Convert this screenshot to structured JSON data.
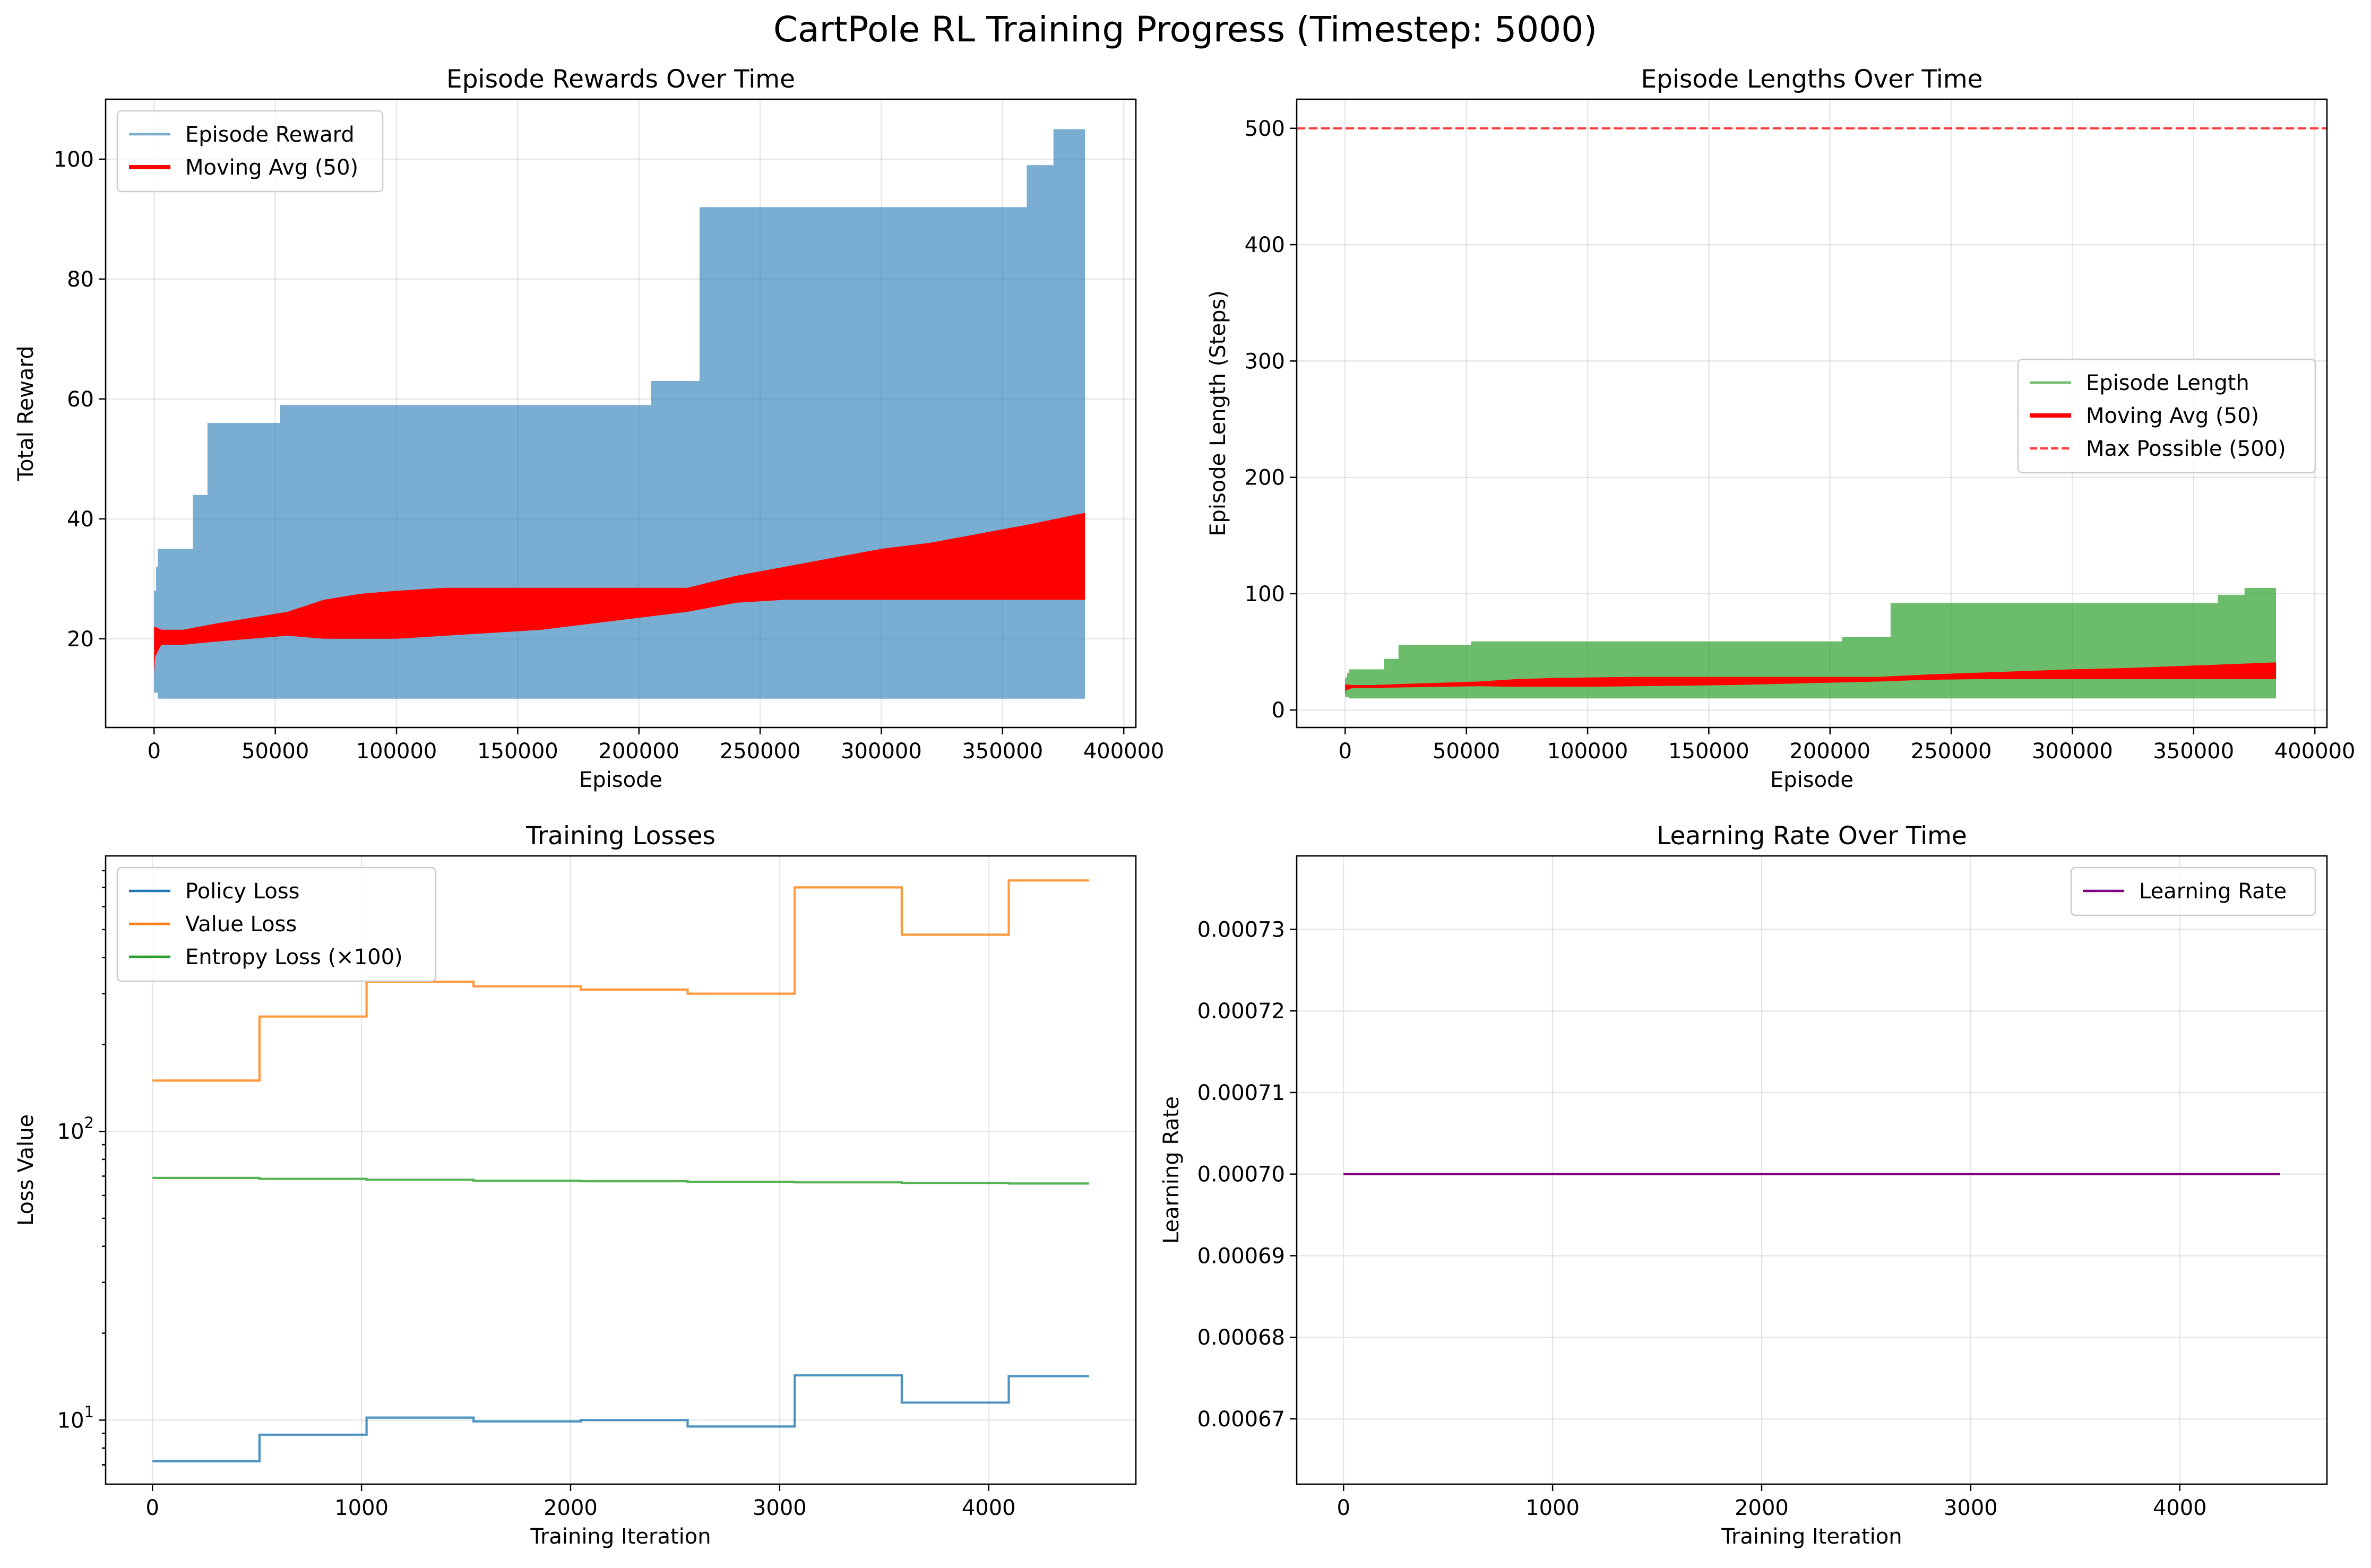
{
  "title": "CartPole RL Training Progress (Timestep: 5000)",
  "chart_data": [
    {
      "type": "area",
      "title": "Episode Rewards Over Time",
      "xlabel": "Episode",
      "ylabel": "Total Reward",
      "xlim": [
        -20000,
        405000
      ],
      "ylim": [
        5.2,
        110
      ],
      "xticks": [
        0,
        50000,
        100000,
        150000,
        200000,
        250000,
        300000,
        350000,
        400000
      ],
      "yticks": [
        20,
        40,
        60,
        80,
        100
      ],
      "grid": true,
      "legend_position": "upper left",
      "series": [
        {
          "name": "Episode Reward",
          "kind": "band",
          "color": "#1f77b4",
          "opacity": 0.6,
          "x": [
            0,
            800,
            800,
            1500,
            1500,
            4000,
            4000,
            16000,
            16000,
            22000,
            22000,
            52000,
            52000,
            205000,
            205000,
            225000,
            225000,
            360000,
            360000,
            371000,
            371000,
            384000
          ],
          "upper": [
            28,
            28,
            32,
            32,
            35,
            35,
            35,
            35,
            44,
            44,
            56,
            56,
            59,
            59,
            63,
            63,
            92,
            92,
            99,
            99,
            105,
            105
          ],
          "lower": [
            11,
            11,
            11,
            11,
            10,
            10,
            10,
            10,
            10,
            10,
            10,
            10,
            10,
            10,
            10,
            10,
            10,
            10,
            10,
            10,
            10,
            10
          ]
        },
        {
          "name": "Moving Avg (50)",
          "kind": "band",
          "color": "#ff0000",
          "x": [
            0,
            400,
            3000,
            12000,
            25000,
            40000,
            55000,
            70000,
            85000,
            100000,
            120000,
            140000,
            160000,
            180000,
            200000,
            220000,
            240000,
            260000,
            280000,
            300000,
            320000,
            340000,
            360000,
            384000
          ],
          "upper": [
            22,
            22,
            21.5,
            21.5,
            22.5,
            23.5,
            24.5,
            26.5,
            27.5,
            28,
            28.5,
            28.5,
            28.5,
            28.5,
            28.5,
            28.5,
            30.5,
            32,
            33.5,
            35,
            36,
            37.5,
            39,
            41
          ],
          "lower": [
            14,
            17,
            19,
            19,
            19.5,
            20,
            20.5,
            20,
            20,
            20,
            20.5,
            21,
            21.5,
            22.5,
            23.5,
            24.5,
            26,
            26.5,
            26.5,
            26.5,
            26.5,
            26.5,
            26.5,
            26.5
          ]
        }
      ]
    },
    {
      "type": "area",
      "title": "Episode Lengths Over Time",
      "xlabel": "Episode",
      "ylabel": "Episode Length (Steps)",
      "xlim": [
        -20000,
        405000
      ],
      "ylim": [
        -15,
        525
      ],
      "xticks": [
        0,
        50000,
        100000,
        150000,
        200000,
        250000,
        300000,
        350000,
        400000
      ],
      "yticks": [
        0,
        100,
        200,
        300,
        400,
        500
      ],
      "grid": true,
      "legend_position": "center right",
      "series": [
        {
          "name": "Episode Length",
          "kind": "band",
          "color": "#2ca02c",
          "opacity": 0.7,
          "x": [
            0,
            800,
            800,
            1500,
            1500,
            4000,
            4000,
            16000,
            16000,
            22000,
            22000,
            52000,
            52000,
            205000,
            205000,
            225000,
            225000,
            360000,
            360000,
            371000,
            371000,
            384000
          ],
          "upper": [
            28,
            28,
            32,
            32,
            35,
            35,
            35,
            35,
            44,
            44,
            56,
            56,
            59,
            59,
            63,
            63,
            92,
            92,
            99,
            99,
            105,
            105
          ],
          "lower": [
            11,
            11,
            11,
            11,
            10,
            10,
            10,
            10,
            10,
            10,
            10,
            10,
            10,
            10,
            10,
            10,
            10,
            10,
            10,
            10,
            10,
            10
          ]
        },
        {
          "name": "Moving Avg (50)",
          "kind": "band",
          "color": "#ff0000",
          "x": [
            0,
            400,
            3000,
            12000,
            25000,
            40000,
            55000,
            70000,
            85000,
            100000,
            120000,
            140000,
            160000,
            180000,
            200000,
            220000,
            240000,
            260000,
            280000,
            300000,
            320000,
            340000,
            360000,
            384000
          ],
          "upper": [
            22,
            22,
            21.5,
            21.5,
            22.5,
            23.5,
            24.5,
            26.5,
            27.5,
            28,
            28.5,
            28.5,
            28.5,
            28.5,
            28.5,
            28.5,
            30.5,
            32,
            33.5,
            35,
            36,
            37.5,
            39,
            41
          ],
          "lower": [
            14,
            17,
            19,
            19,
            19.5,
            20,
            20.5,
            20,
            20,
            20,
            20.5,
            21,
            21.5,
            22.5,
            23.5,
            24.5,
            26,
            26.5,
            26.5,
            26.5,
            26.5,
            26.5,
            26.5,
            26.5
          ]
        },
        {
          "name": "Max Possible (500)",
          "kind": "hline",
          "color": "#ff0000",
          "dashed": true,
          "y": 500
        }
      ]
    },
    {
      "type": "line",
      "title": "Training Losses",
      "xlabel": "Training Iteration",
      "ylabel": "Loss Value",
      "yscale": "log",
      "xlim": [
        -224,
        4704
      ],
      "ylim": [
        6,
        900
      ],
      "xticks": [
        0,
        1000,
        2000,
        3000,
        4000
      ],
      "yticks": [
        10,
        100
      ],
      "yticklabels": [
        [
          "10",
          "1"
        ],
        [
          "10",
          "2"
        ]
      ],
      "grid": true,
      "legend_position": "upper left",
      "series": [
        {
          "name": "Policy Loss",
          "kind": "step",
          "color": "#1f77b4",
          "x": [
            0,
            512,
            512,
            1024,
            1024,
            1536,
            1536,
            2048,
            2048,
            2560,
            2560,
            3072,
            3072,
            3584,
            3584,
            4096,
            4096,
            4480
          ],
          "y": [
            7.2,
            7.2,
            8.9,
            8.9,
            10.2,
            10.2,
            9.9,
            9.9,
            10.0,
            10.0,
            9.5,
            9.5,
            14.3,
            14.3,
            11.5,
            11.5,
            14.2,
            14.2
          ]
        },
        {
          "name": "Value Loss",
          "kind": "step",
          "color": "#ff7f0e",
          "x": [
            0,
            512,
            512,
            1024,
            1024,
            1536,
            1536,
            2048,
            2048,
            2560,
            2560,
            3072,
            3072,
            3584,
            3584,
            4096,
            4096,
            4480
          ],
          "y": [
            150,
            150,
            250,
            250,
            330,
            330,
            318,
            318,
            310,
            310,
            300,
            300,
            700,
            700,
            480,
            480,
            740,
            740
          ]
        },
        {
          "name": "Entropy Loss (×100)",
          "kind": "step",
          "color": "#2ca02c",
          "x": [
            0,
            512,
            512,
            1024,
            1024,
            1536,
            1536,
            2048,
            2048,
            2560,
            2560,
            3072,
            3072,
            3584,
            3584,
            4096,
            4096,
            4480
          ],
          "y": [
            69,
            69,
            68.5,
            68.5,
            68,
            68,
            67.5,
            67.5,
            67.2,
            67.2,
            66.9,
            66.9,
            66.6,
            66.6,
            66.3,
            66.3,
            66.0,
            66.0
          ]
        }
      ]
    },
    {
      "type": "line",
      "title": "Learning Rate Over Time",
      "xlabel": "Training Iteration",
      "ylabel": "Learning Rate",
      "xlim": [
        -224,
        4704
      ],
      "ylim": [
        0.000662,
        0.000739
      ],
      "xticks": [
        0,
        1000,
        2000,
        3000,
        4000
      ],
      "yticks": [
        0.00067,
        0.00068,
        0.00069,
        0.0007,
        0.00071,
        0.00072,
        0.00073
      ],
      "yticklabels": [
        "0.00067",
        "0.00068",
        "0.00069",
        "0.00070",
        "0.00071",
        "0.00072",
        "0.00073"
      ],
      "grid": true,
      "legend_position": "upper right",
      "series": [
        {
          "name": "Learning Rate",
          "kind": "line",
          "color": "#800080",
          "x": [
            0,
            4480
          ],
          "y": [
            0.0007,
            0.0007
          ]
        }
      ]
    }
  ]
}
